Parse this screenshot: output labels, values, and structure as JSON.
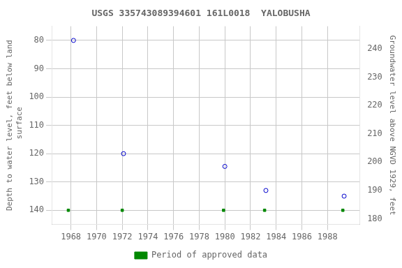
{
  "chart_data": {
    "type": "scatter",
    "title": "USGS 335743089394601 161L0018  YALOBUSHA",
    "ylabel": "Depth to water level, feet below land\n surface",
    "y2label": "Groundwater level above NGVD 1929, feet",
    "series": [
      {
        "x": [
          1968.2,
          1972.1,
          1980.0,
          1983.2,
          1989.3
        ],
        "values": [
          80.0,
          120.0,
          124.5,
          133.0,
          135.0
        ],
        "color": "#0000cc",
        "marker": "circle"
      },
      {
        "name": "Period of approved data",
        "x": [
          1967.8,
          1972.0,
          1979.9,
          1983.1,
          1989.2
        ],
        "values": [
          140,
          140,
          140,
          140,
          140
        ],
        "color": "#008800",
        "marker": "square"
      }
    ],
    "xlim": [
      1966.5,
      1990.5
    ],
    "xticks": [
      1968,
      1970,
      1972,
      1974,
      1976,
      1978,
      1980,
      1982,
      1984,
      1986,
      1988
    ],
    "ylim": [
      145,
      75
    ],
    "yticks": [
      80,
      90,
      100,
      110,
      120,
      130,
      140
    ],
    "y2lim": [
      178,
      248
    ],
    "y2ticks": [
      180,
      190,
      200,
      210,
      220,
      230,
      240
    ],
    "grid": true,
    "legend": "bottom"
  }
}
